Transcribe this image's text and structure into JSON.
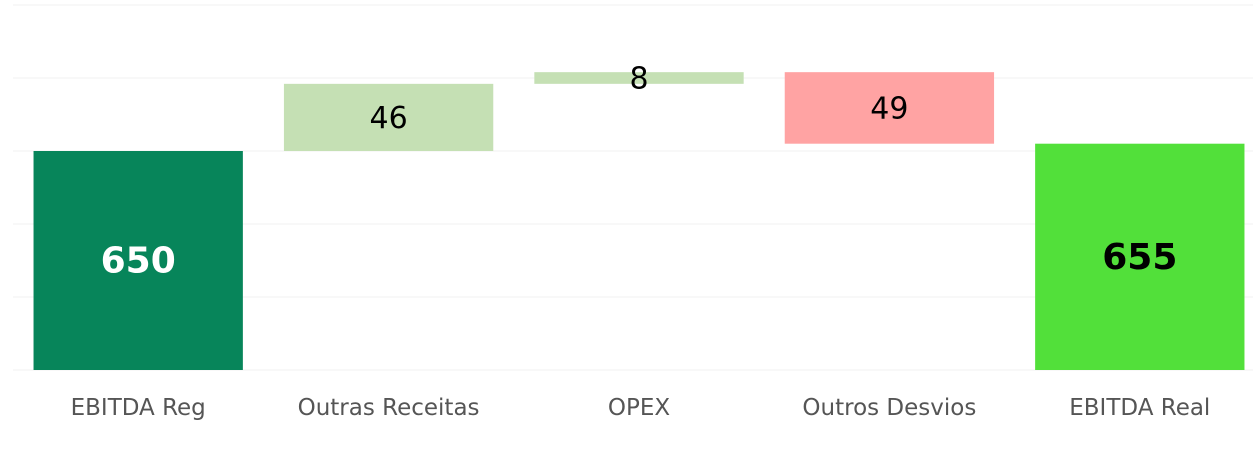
{
  "chart_data": {
    "type": "waterfall",
    "categories": [
      "EBITDA Reg",
      "Outras Receitas",
      "OPEX",
      "Outros Desvios",
      "EBITDA Real"
    ],
    "values": [
      650,
      46,
      8,
      -49,
      655
    ],
    "value_labels": [
      "650",
      "46",
      "8",
      "49",
      "655"
    ],
    "measures": [
      "total",
      "relative",
      "relative",
      "relative",
      "total"
    ],
    "colors": [
      "#07855a",
      "#c5e0b4",
      "#c5e0b4",
      "#ffa3a3",
      "#52e03a"
    ],
    "label_colors": [
      "#ffffff",
      "#000000",
      "#000000",
      "#000000",
      "#000000"
    ],
    "ylim": [
      500,
      750
    ],
    "yticks": [
      500,
      550,
      600,
      650,
      700,
      750
    ],
    "grid": true
  }
}
